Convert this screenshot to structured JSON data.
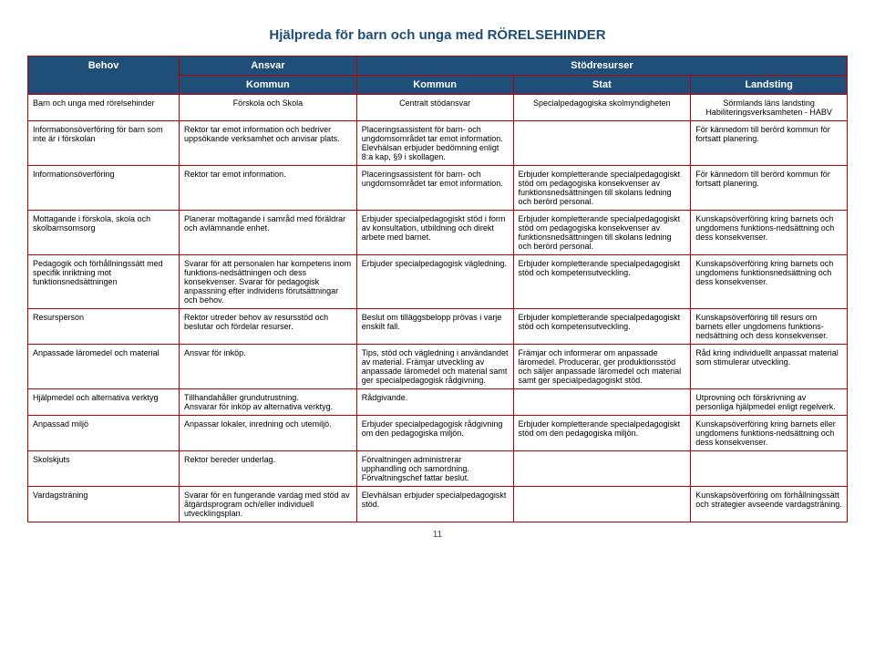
{
  "title": "Hjälpreda för barn och unga med RÖRELSEHINDER",
  "headers": {
    "behov": "Behov",
    "ansvar": "Ansvar",
    "stodresurser": "Stödresurser",
    "kommun1": "Kommun",
    "kommun2": "Kommun",
    "stat": "Stat",
    "landsting": "Landsting"
  },
  "subheader": {
    "behov": "Barn och unga med rörelsehinder",
    "kommun1": "Förskola och Skola",
    "kommun2": "Centralt stödansvar",
    "stat": "Specialpedagogiska skolmyndigheten",
    "landsting": "Sörmlands läns landsting\nHabiliteringsverksamheten - HABV"
  },
  "rows": [
    {
      "behov": "Informationsöverföring för barn som inte är i förskolan",
      "kommun1": "Rektor tar emot information och bedriver uppsökande verksamhet och anvisar plats.",
      "kommun2": "Placeringsassistent för barn- och ungdomsområdet tar emot information. Elevhälsan erbjuder bedömning enligt 8:a kap, §9 i skollagen.",
      "stat": "",
      "landsting": "För kännedom till berörd kommun för fortsatt planering."
    },
    {
      "behov": "Informationsöverföring",
      "kommun1": "Rektor tar emot information.",
      "kommun2": "Placeringsassistent för barn- och ungdomsområdet tar emot information.",
      "stat": "Erbjuder kompletterande specialpedagogiskt stöd om pedagogiska konsekvenser av funktionsnedsättningen till skolans ledning och berörd personal.",
      "landsting": "För kännedom till berörd kommun för fortsatt planering."
    },
    {
      "behov": "Mottagande i förskola, skola och skolbarnsomsorg",
      "kommun1": "Planerar mottagande i samråd med föräldrar och avlämnande enhet.",
      "kommun2": "Erbjuder specialpedagogiskt stöd i form av konsultation, utbildning och direkt arbete med barnet.",
      "stat": "Erbjuder kompletterande specialpedagogiskt stöd om pedagogiska konsekvenser av funktionsnedsättningen till skolans ledning och berörd personal.",
      "landsting": "Kunskapsöverföring kring barnets och ungdomens funktions-nedsättning och dess konsekvenser."
    },
    {
      "behov": "Pedagogik och förhållningssätt med specifik inriktning mot funktionsnedsättningen",
      "kommun1": "Svarar för att personalen har kompetens inom funktions-nedsättningen och dess konsekvenser. Svarar för pedagogisk anpassning efter individens förutsättningar och behov.",
      "kommun2": "Erbjuder specialpedagogisk vägledning.",
      "stat": "Erbjuder kompletterande specialpedagogiskt stöd och kompetensutveckling.",
      "landsting": "Kunskapsöverföring kring barnets och ungdomens funktionsnedsättning och dess konsekvenser."
    },
    {
      "behov": "Resursperson",
      "kommun1": "Rektor utreder behov av resursstöd och beslutar och fördelar resurser.",
      "kommun2": "Beslut om tilläggsbelopp prövas i varje enskilt fall.",
      "stat": "Erbjuder kompletterande specialpedagogiskt stöd och kompetensutveckling.",
      "landsting": "Kunskapsöverföring till resurs om barnets eller ungdomens funktions-nedsättning och dess konsekvenser."
    },
    {
      "behov": "Anpassade läromedel och material",
      "kommun1": "Ansvar för inköp.",
      "kommun2": "Tips, stöd och vägledning i användandet av material. Främjar utveckling av anpassade läromedel och material samt ger specialpedagogisk rådgivning.",
      "stat": "Främjar och informerar om anpassade läromedel. Producerar, ger produktionsstöd och säljer anpassade läromedel och material samt ger specialpedagogiskt stöd.",
      "landsting": "Råd kring individuellt anpassat material som stimulerar utveckling."
    },
    {
      "behov": "Hjälpmedel och alternativa verktyg",
      "kommun1": "Tillhandahåller grundutrustning.\nAnsvarar för inköp av alternativa verktyg.",
      "kommun2": "Rådgivande.",
      "stat": "",
      "landsting": "Utprovning och förskrivning av personliga hjälpmedel enligt regelverk."
    },
    {
      "behov": "Anpassad miljö",
      "kommun1": "Anpassar lokaler, inredning och utemiljö.",
      "kommun2": "Erbjuder specialpedagogisk rådgivning om den pedagogiska miljön.",
      "stat": "Erbjuder kompletterande specialpedagogiskt stöd om den pedagogiska miljön.",
      "landsting": "Kunskapsöverföring kring barnets eller ungdomens funktions-nedsättning och dess konsekvenser."
    },
    {
      "behov": "Skolskjuts",
      "kommun1": "Rektor bereder underlag.",
      "kommun2": "Förvaltningen administrerar upphandling och samordning. Förvaltningschef fattar beslut.",
      "stat": "",
      "landsting": ""
    },
    {
      "behov": "Vardagsträning",
      "kommun1": "Svarar för en fungerande vardag med stöd av åtgärdsprogram och/eller individuell utvecklingsplan.",
      "kommun2": "Elevhälsan erbjuder specialpedagogiskt stöd.",
      "stat": "",
      "landsting": "Kunskapsöverföring om förhållningssätt och strategier avseende vardagsträning."
    }
  ],
  "pageNumber": "11"
}
